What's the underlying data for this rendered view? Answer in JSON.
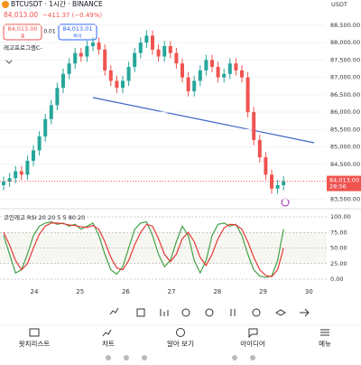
{
  "header": {
    "symbol": "BTCUSDT · 1시간 · BINANCE",
    "price": "84,013.00",
    "change": "−411.37 (−0.49%)",
    "currency": "USDT"
  },
  "trade": {
    "sell_price": "84,013.00",
    "sell_label": "셀",
    "spread": "0.01",
    "buy_price": "84,013.01",
    "buy_label": "바이"
  },
  "indicator_label": "레고프로그램C-",
  "chart_data": [
    {
      "type": "candlestick",
      "xticks": [
        "24",
        "25",
        "26",
        "27",
        "28",
        "29",
        "30"
      ],
      "open": [
        83900,
        84000,
        84100,
        84300,
        84200,
        84600,
        84900,
        85300,
        85800,
        86200,
        86700,
        87100,
        87400,
        87700,
        87600,
        87900,
        88000,
        87800,
        87200,
        86900,
        86700,
        86900,
        87300,
        87700,
        88000,
        88200,
        87800,
        87600,
        87900,
        87700,
        87400,
        87000,
        86600,
        86900,
        87200,
        87500,
        87300,
        87000,
        87100,
        87400,
        87200,
        87000,
        86000,
        85200,
        84700,
        84200,
        83800,
        83900
      ],
      "high": [
        84150,
        84250,
        84450,
        84450,
        84750,
        85050,
        85450,
        85950,
        86350,
        86850,
        87250,
        87550,
        87850,
        87850,
        88050,
        88150,
        88150,
        87950,
        87350,
        87050,
        87050,
        87450,
        87850,
        88150,
        88350,
        88350,
        87950,
        88050,
        88050,
        87850,
        87550,
        87150,
        87050,
        87350,
        87650,
        87650,
        87450,
        87250,
        87550,
        87550,
        87350,
        87150,
        86150,
        85350,
        84850,
        84350,
        84050,
        84163
      ],
      "low": [
        83750,
        83850,
        83950,
        84050,
        84050,
        84450,
        84750,
        85150,
        85650,
        86050,
        86550,
        86950,
        87250,
        87450,
        87450,
        87750,
        87650,
        87050,
        86750,
        86550,
        86550,
        86750,
        87150,
        87550,
        87850,
        87650,
        87450,
        87450,
        87550,
        87250,
        86850,
        86450,
        86450,
        86750,
        87050,
        87150,
        86850,
        86850,
        86950,
        87050,
        86850,
        85850,
        85050,
        84550,
        84050,
        83650,
        83650,
        83750
      ],
      "close": [
        84000,
        84100,
        84300,
        84200,
        84600,
        84900,
        85300,
        85800,
        86200,
        86700,
        87100,
        87400,
        87700,
        87600,
        87900,
        88000,
        87800,
        87200,
        86900,
        86700,
        86900,
        87300,
        87700,
        88000,
        88200,
        87800,
        87600,
        87900,
        87700,
        87400,
        87000,
        86600,
        86900,
        87200,
        87500,
        87300,
        87000,
        87100,
        87400,
        87200,
        87000,
        86000,
        85200,
        84700,
        84200,
        83800,
        83900,
        84013
      ],
      "up_color": "#26a69a",
      "down_color": "#ef5350",
      "ylim": [
        83300,
        88950
      ],
      "yticks": [
        {
          "value": 88500,
          "label": "88,500.00"
        },
        {
          "value": 88000,
          "label": "88,000.00"
        },
        {
          "value": 87500,
          "label": "87,500.00"
        },
        {
          "value": 87000,
          "label": "87,000.00"
        },
        {
          "value": 86500,
          "label": "86,500.00"
        },
        {
          "value": 86000,
          "label": "86,000.00"
        },
        {
          "value": 85500,
          "label": "85,500.00"
        },
        {
          "value": 85000,
          "label": "85,000.00"
        },
        {
          "value": 84500,
          "label": "84,500.00"
        },
        {
          "value": 83500,
          "label": "83,500.00"
        }
      ],
      "last_price_label": "84,013.00",
      "countdown": "28:56"
    },
    {
      "type": "line",
      "title": "코인레고 RSI 20 20 5 5 80 20",
      "series": [
        {
          "color": "#43a047",
          "values": [
            70,
            40,
            10,
            15,
            40,
            70,
            85,
            90,
            92,
            88,
            90,
            85,
            88,
            80,
            85,
            90,
            70,
            40,
            15,
            8,
            20,
            50,
            80,
            90,
            92,
            70,
            40,
            20,
            30,
            60,
            85,
            70,
            30,
            10,
            30,
            70,
            88,
            90,
            85,
            88,
            70,
            40,
            15,
            5,
            3,
            5,
            30,
            80
          ]
        },
        {
          "color": "#e53935",
          "values": [
            75,
            55,
            30,
            15,
            25,
            50,
            72,
            85,
            90,
            90,
            89,
            87,
            86,
            84,
            83,
            86,
            80,
            60,
            35,
            18,
            15,
            30,
            55,
            75,
            88,
            85,
            65,
            40,
            28,
            40,
            65,
            75,
            60,
            35,
            22,
            40,
            65,
            82,
            88,
            87,
            80,
            60,
            35,
            15,
            6,
            4,
            15,
            50
          ]
        }
      ],
      "ylim": [
        0,
        100
      ],
      "yticks": [
        {
          "value": 100,
          "label": "100.00"
        },
        {
          "value": 75,
          "label": "75.00"
        },
        {
          "value": 50,
          "label": "50.00"
        },
        {
          "value": 25,
          "label": "25.00"
        },
        {
          "value": 0,
          "label": "0.00"
        }
      ]
    }
  ],
  "nav": [
    "왓치리스트",
    "차트",
    "알아 보기",
    "아이디어",
    "메뉴"
  ]
}
